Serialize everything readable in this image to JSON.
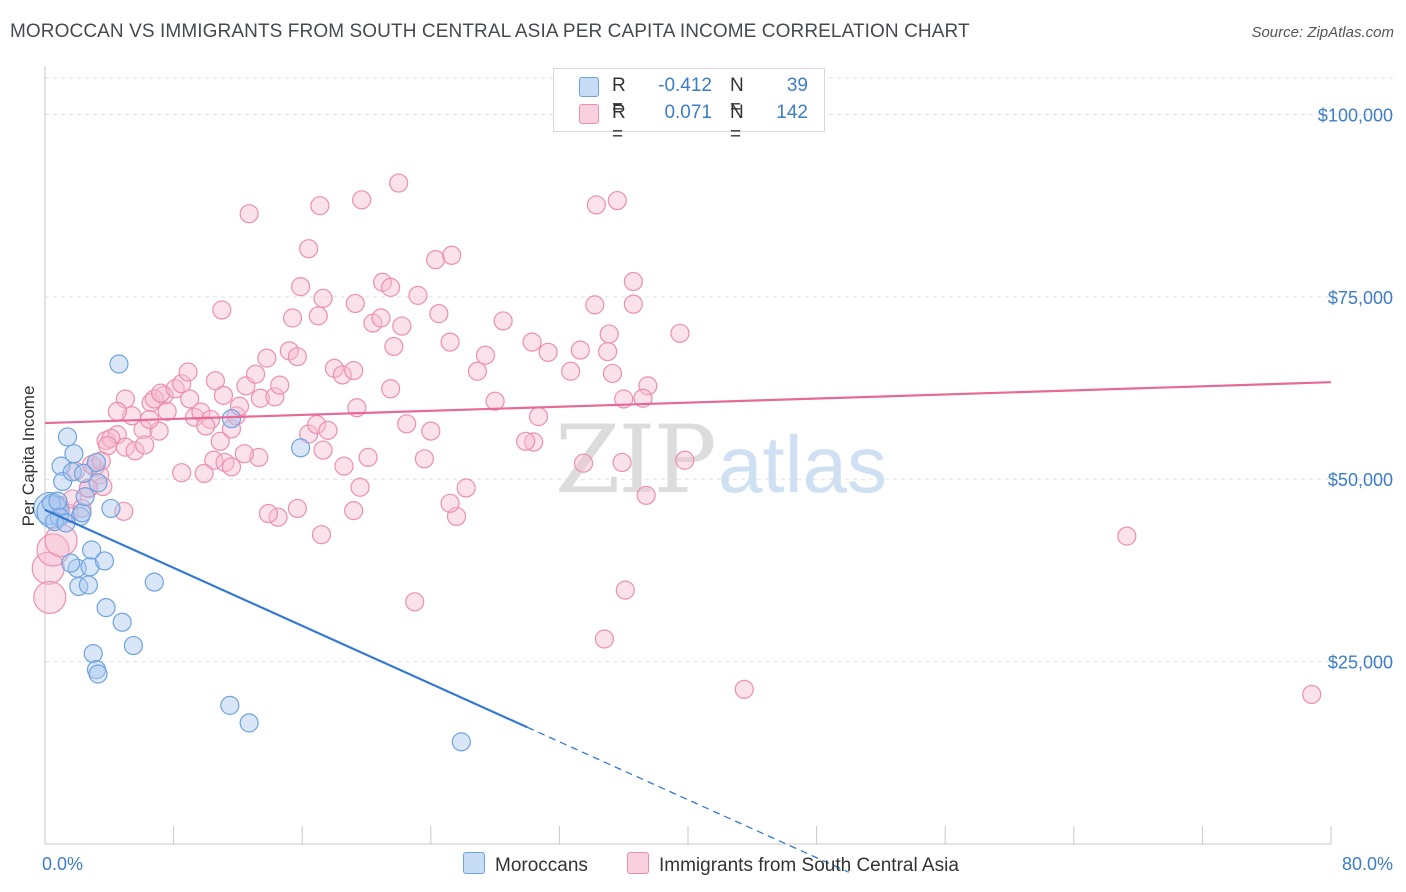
{
  "title": "MOROCCAN VS IMMIGRANTS FROM SOUTH CENTRAL ASIA PER CAPITA INCOME CORRELATION CHART",
  "source": "Source: ZipAtlas.com",
  "watermark": {
    "zip": "ZIP",
    "atlas": "atlas"
  },
  "legend_top": [
    {
      "r_label": "R =",
      "r_value": "-0.412",
      "n_label": "N =",
      "n_value": "39",
      "color": "#a8c8ef",
      "stroke": "#6fa3df"
    },
    {
      "r_label": "R =",
      "r_value": "0.071",
      "n_label": "N =",
      "n_value": "142",
      "color": "#f6bcd0",
      "stroke": "#eb8fb0"
    }
  ],
  "legend_bottom": [
    {
      "label": "Moroccans",
      "color": "#a8c8ef",
      "stroke": "#6fa3df"
    },
    {
      "label": "Immigrants from South Central Asia",
      "color": "#f6bcd0",
      "stroke": "#eb8fb0"
    }
  ],
  "chart_data": {
    "type": "scatter",
    "title": "MOROCCAN VS IMMIGRANTS FROM SOUTH CENTRAL ASIA PER CAPITA INCOME CORRELATION CHART",
    "xlabel": "",
    "ylabel": "Per Capita Income",
    "xlim": [
      0,
      80
    ],
    "ylim": [
      0,
      105000
    ],
    "x_tick_labels": {
      "min": "0.0%",
      "max": "80.0%"
    },
    "y_ticks": [
      {
        "value": 25000,
        "label": "$25,000"
      },
      {
        "value": 50000,
        "label": "$50,000"
      },
      {
        "value": 75000,
        "label": "$75,000"
      },
      {
        "value": 100000,
        "label": "$100,000"
      }
    ],
    "grid": "horizontal dashed",
    "legend_placement": "top-center and bottom",
    "series": [
      {
        "name": "Moroccans",
        "color": "#6fa3df",
        "trend": {
          "x0": 0,
          "y0": 45800,
          "x1": 30,
          "y1": 16000,
          "dash_to_x": 50
        },
        "points": [
          [
            0.3,
            46000,
            "l"
          ],
          [
            0.5,
            45500,
            "l"
          ],
          [
            0.4,
            46700
          ],
          [
            0.8,
            47000
          ],
          [
            0.9,
            44800
          ],
          [
            1.0,
            51800
          ],
          [
            1.1,
            49700
          ],
          [
            1.4,
            55800
          ],
          [
            1.7,
            51000
          ],
          [
            1.8,
            53500
          ],
          [
            2.2,
            44900
          ],
          [
            2.3,
            45400
          ],
          [
            2.5,
            47600
          ],
          [
            3.2,
            52300
          ],
          [
            3.3,
            49500
          ],
          [
            4.1,
            46000
          ],
          [
            2.0,
            37800
          ],
          [
            2.1,
            35300
          ],
          [
            2.7,
            35500
          ],
          [
            2.8,
            38000
          ],
          [
            2.9,
            40300
          ],
          [
            3.7,
            38800
          ],
          [
            1.6,
            38500
          ],
          [
            3.8,
            32400
          ],
          [
            4.8,
            30400
          ],
          [
            5.5,
            27200
          ],
          [
            3.0,
            26100
          ],
          [
            3.2,
            23900
          ],
          [
            3.3,
            23300
          ],
          [
            6.8,
            35900
          ],
          [
            4.6,
            65800
          ],
          [
            11.6,
            58300
          ],
          [
            15.9,
            54300
          ],
          [
            11.5,
            19000
          ],
          [
            12.7,
            16600
          ],
          [
            25.9,
            14000
          ],
          [
            0.6,
            44200
          ],
          [
            1.3,
            44000
          ],
          [
            2.4,
            50800
          ]
        ]
      },
      {
        "name": "Immigrants from South Central Asia",
        "color": "#eb8fb0",
        "trend": {
          "x0": 0,
          "y0": 57700,
          "x1": 80,
          "y1": 63300
        },
        "points": [
          [
            0.2,
            37800,
            "l"
          ],
          [
            0.3,
            33800,
            "l"
          ],
          [
            0.5,
            40300,
            "l"
          ],
          [
            1.0,
            41600,
            "l"
          ],
          [
            0.9,
            46400
          ],
          [
            1.5,
            45300
          ],
          [
            1.7,
            47300
          ],
          [
            2.3,
            46000
          ],
          [
            2.7,
            48700
          ],
          [
            3.1,
            51600
          ],
          [
            3.4,
            50600
          ],
          [
            3.6,
            49000
          ],
          [
            2.9,
            52000
          ],
          [
            3.8,
            55300
          ],
          [
            4.5,
            56100
          ],
          [
            4.1,
            55600
          ],
          [
            5.0,
            54400
          ],
          [
            5.6,
            53900
          ],
          [
            6.1,
            56800
          ],
          [
            6.2,
            54700
          ],
          [
            6.6,
            60500
          ],
          [
            7.4,
            61500
          ],
          [
            6.8,
            61000
          ],
          [
            7.2,
            61800
          ],
          [
            8.1,
            62400
          ],
          [
            8.5,
            63100
          ],
          [
            8.9,
            64700
          ],
          [
            9.0,
            61000
          ],
          [
            9.3,
            58500
          ],
          [
            9.7,
            59200
          ],
          [
            10.3,
            58200
          ],
          [
            10.0,
            57300
          ],
          [
            10.6,
            63500
          ],
          [
            11.1,
            61500
          ],
          [
            10.9,
            55200
          ],
          [
            10.5,
            52600
          ],
          [
            11.6,
            56900
          ],
          [
            11.9,
            58700
          ],
          [
            11.2,
            52300
          ],
          [
            12.1,
            60000
          ],
          [
            12.5,
            62800
          ],
          [
            13.1,
            64400
          ],
          [
            13.4,
            61100
          ],
          [
            13.8,
            66600
          ],
          [
            14.3,
            61300
          ],
          [
            14.6,
            62900
          ],
          [
            15.2,
            67600
          ],
          [
            15.7,
            66800
          ],
          [
            16.4,
            56200
          ],
          [
            16.9,
            57500
          ],
          [
            17.3,
            54000
          ],
          [
            18.0,
            65200
          ],
          [
            18.5,
            64300
          ],
          [
            19.2,
            64900
          ],
          [
            19.4,
            59800
          ],
          [
            20.4,
            71400
          ],
          [
            20.9,
            72100
          ],
          [
            21.7,
            68200
          ],
          [
            22.2,
            71000
          ],
          [
            23.2,
            75200
          ],
          [
            24.5,
            72700
          ],
          [
            25.2,
            68800
          ],
          [
            26.9,
            64800
          ],
          [
            27.4,
            67000
          ],
          [
            28.5,
            71700
          ],
          [
            30.3,
            68800
          ],
          [
            31.3,
            67400
          ],
          [
            32.7,
            64800
          ],
          [
            34.2,
            73900
          ],
          [
            35.1,
            69900
          ],
          [
            36.0,
            61000
          ],
          [
            33.5,
            52200
          ],
          [
            30.4,
            55100
          ],
          [
            28.0,
            60700
          ],
          [
            26.2,
            48800
          ],
          [
            25.6,
            44900
          ],
          [
            25.2,
            46700
          ],
          [
            24.0,
            56600
          ],
          [
            23.6,
            52800
          ],
          [
            22.5,
            57600
          ],
          [
            21.5,
            62400
          ],
          [
            20.1,
            53000
          ],
          [
            19.6,
            48900
          ],
          [
            19.2,
            45700
          ],
          [
            18.6,
            51800
          ],
          [
            17.6,
            56700
          ],
          [
            17.2,
            42400
          ],
          [
            15.7,
            46000
          ],
          [
            14.5,
            44800
          ],
          [
            13.9,
            45300
          ],
          [
            13.3,
            53000
          ],
          [
            12.4,
            53500
          ],
          [
            11.6,
            51700
          ],
          [
            9.9,
            50800
          ],
          [
            8.5,
            50900
          ],
          [
            7.6,
            59300
          ],
          [
            7.1,
            56600
          ],
          [
            6.5,
            58200
          ],
          [
            5.4,
            58700
          ],
          [
            5.0,
            61000
          ],
          [
            4.5,
            59300
          ],
          [
            4.9,
            45600
          ],
          [
            3.9,
            54600
          ],
          [
            3.5,
            52500
          ],
          [
            2.7,
            48800
          ],
          [
            1.9,
            51100
          ],
          [
            12.7,
            86400
          ],
          [
            17.1,
            87500
          ],
          [
            16.4,
            81600
          ],
          [
            19.7,
            88300
          ],
          [
            22.0,
            90600
          ],
          [
            24.3,
            80100
          ],
          [
            25.3,
            80700
          ],
          [
            21.0,
            77000
          ],
          [
            21.5,
            76300
          ],
          [
            17.3,
            74800
          ],
          [
            15.9,
            76400
          ],
          [
            17.0,
            72400
          ],
          [
            15.4,
            72100
          ],
          [
            11.0,
            73200
          ],
          [
            19.3,
            74100
          ],
          [
            34.3,
            87600
          ],
          [
            35.6,
            88200
          ],
          [
            36.6,
            77100
          ],
          [
            36.6,
            74000
          ],
          [
            35.0,
            67500
          ],
          [
            35.3,
            64500
          ],
          [
            37.5,
            62800
          ],
          [
            37.2,
            61100
          ],
          [
            39.5,
            70000
          ],
          [
            35.9,
            52300
          ],
          [
            37.4,
            47800
          ],
          [
            39.8,
            52600
          ],
          [
            29.9,
            55200
          ],
          [
            33.3,
            67700
          ],
          [
            36.1,
            34800
          ],
          [
            34.8,
            28100
          ],
          [
            23.0,
            33200
          ],
          [
            43.5,
            21200
          ],
          [
            67.3,
            42200
          ],
          [
            78.8,
            20500
          ],
          [
            30.7,
            58600
          ]
        ]
      }
    ]
  }
}
